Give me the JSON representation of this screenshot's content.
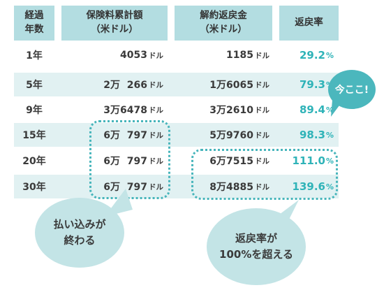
{
  "header": {
    "year": [
      "経過",
      "年数"
    ],
    "premium": [
      "保険料累計額",
      "（米ドル）"
    ],
    "refund": [
      "解約返戻金",
      "（米ドル）"
    ],
    "rate": "返戻率"
  },
  "unit": "ドル",
  "rate_unit": "%",
  "rows": [
    {
      "year": "1年",
      "premium": "4053",
      "refund": "1185",
      "rate": "29.2"
    },
    {
      "year": "5年",
      "premium": "2万  266",
      "refund": "1万6065",
      "rate": "79.3"
    },
    {
      "year": "9年",
      "premium": "3万6478",
      "refund": "3万2610",
      "rate": "89.4"
    },
    {
      "year": "15年",
      "premium": "6万  797",
      "refund": "5万9760",
      "rate": "98.3"
    },
    {
      "year": "20年",
      "premium": "6万  797",
      "refund": "6万7515",
      "rate": "111.0"
    },
    {
      "year": "30年",
      "premium": "6万  797",
      "refund": "8万4885",
      "rate": "139.6"
    }
  ],
  "callouts": {
    "now": "今ここ!",
    "paid_off": [
      "払い込みが",
      "終わる"
    ],
    "over100": [
      "返戻率が",
      "100%を超える"
    ]
  },
  "colors": {
    "header_bg": "#b3dde1",
    "band_bg": "#e1f1f2",
    "accent": "#2fb3b8",
    "bubble_dark": "#4bb7bd",
    "bubble_light": "#c3e4e6"
  }
}
